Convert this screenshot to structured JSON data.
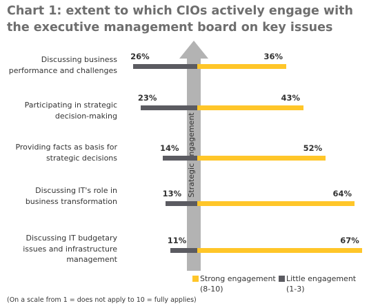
{
  "chart_data": {
    "type": "bar",
    "title": "Chart 1: extent to which CIOs actively engage with the executive management board on key issues",
    "axis_label": "Strategic engagement",
    "categories": [
      [
        "Discussing business",
        "performance and challenges"
      ],
      [
        "Participating in strategic",
        "decision-making"
      ],
      [
        "Providing facts as basis for",
        "strategic decisions"
      ],
      [
        "Discussing IT's role in",
        "business transformation"
      ],
      [
        "Discussing IT budgetary",
        "issues and infrastructure",
        "management"
      ]
    ],
    "series": [
      {
        "name": "Strong engagement (8-10)",
        "name_lines": [
          "Strong engagement",
          "(8-10)"
        ],
        "color": "#ffc629",
        "values": [
          36,
          43,
          52,
          64,
          67
        ]
      },
      {
        "name": "Little engagement (1-3)",
        "name_lines": [
          "Little engagement",
          "(1-3)"
        ],
        "color": "#5b5b61",
        "values": [
          26,
          23,
          14,
          13,
          11
        ]
      }
    ],
    "unit": "%",
    "legend": "bottom-right",
    "footnote": "(On a scale from 1 = does not apply to 10 = fully applies)"
  },
  "colors": {
    "title": "#6e6e6e",
    "arrow": "#b3b3b3",
    "text": "#333333"
  }
}
